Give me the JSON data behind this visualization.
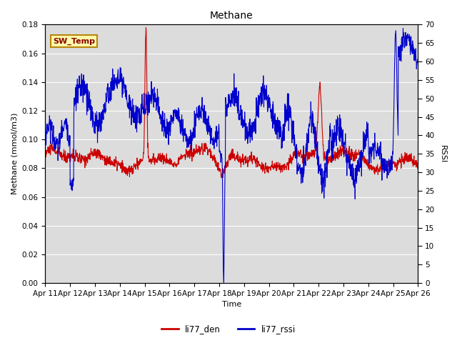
{
  "title": "Methane",
  "xlabel": "Time",
  "ylabel_left": "Methane (mmol/m3)",
  "ylabel_right": "RSSI",
  "ylim_left": [
    0.0,
    0.18
  ],
  "ylim_right": [
    0,
    70
  ],
  "yticks_left": [
    0.0,
    0.02,
    0.04,
    0.06,
    0.08,
    0.1,
    0.12,
    0.14,
    0.16,
    0.18
  ],
  "yticks_right": [
    0,
    5,
    10,
    15,
    20,
    25,
    30,
    35,
    40,
    45,
    50,
    55,
    60,
    65,
    70
  ],
  "xtick_labels": [
    "Apr 11",
    "Apr 12",
    "Apr 13",
    "Apr 14",
    "Apr 15",
    "Apr 16",
    "Apr 17",
    "Apr 18",
    "Apr 19",
    "Apr 20",
    "Apr 21",
    "Apr 22",
    "Apr 23",
    "Apr 24",
    "Apr 25",
    "Apr 26"
  ],
  "color_red": "#CC0000",
  "color_blue": "#0000CC",
  "bg_color": "#DCDCDC",
  "annotation_label": "SW_Temp",
  "annotation_box_color": "#FFFAAA",
  "annotation_border_color": "#B8860B",
  "legend_labels": [
    "li77_den",
    "li77_rssi"
  ],
  "linewidth": 0.8,
  "title_fontsize": 10,
  "label_fontsize": 8,
  "tick_fontsize": 7.5
}
